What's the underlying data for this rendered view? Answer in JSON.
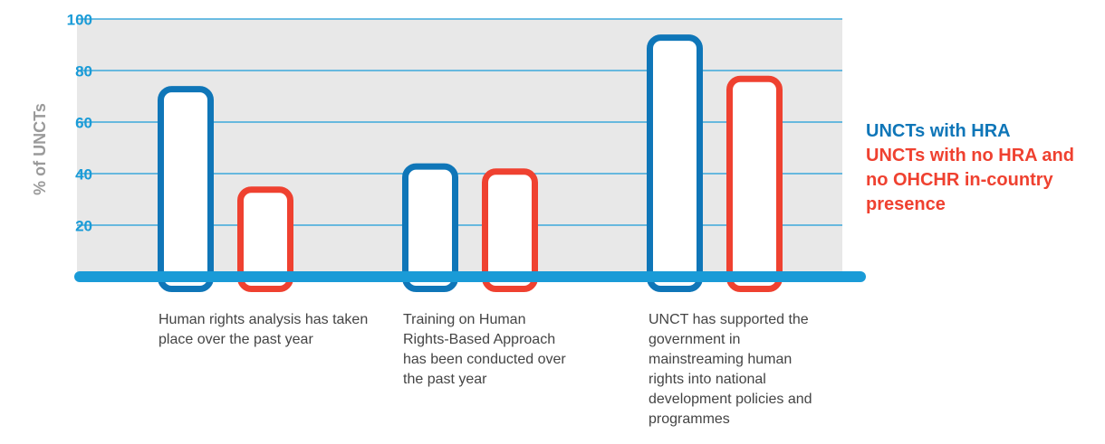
{
  "chart_data": {
    "type": "bar",
    "ylabel": "% of UNCTs",
    "categories": [
      "Human rights analysis has taken place over the past year",
      "Training on Human Rights-Based Approach has been conducted over the past year",
      "UNCT has supported the government in mainstreaming human rights into national development policies and programmes"
    ],
    "series": [
      {
        "name": "UNCTs with HRA",
        "color": "#0f76b8",
        "values": [
          74,
          44,
          94
        ]
      },
      {
        "name": "UNCTs with no HRA and no OHCHR in-country presence",
        "color": "#ef4130",
        "values": [
          35,
          42,
          78
        ]
      }
    ],
    "ylim": [
      0,
      100
    ],
    "yticks": [
      20,
      40,
      60,
      80,
      100
    ],
    "grid": true
  }
}
